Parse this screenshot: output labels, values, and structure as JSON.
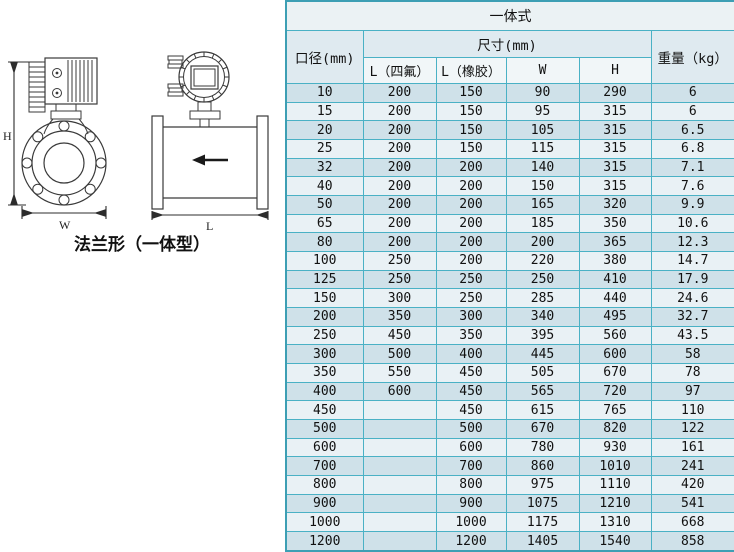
{
  "diagram": {
    "caption": "法兰形（一体型）",
    "dim_labels": {
      "height": "H",
      "width": "W",
      "length": "L"
    }
  },
  "table": {
    "title": "一体式",
    "col_diameter": "口径(mm)",
    "col_size_group": "尺寸(mm)",
    "col_weight": "重量（kg）",
    "subcols": [
      "L（四氟）",
      "L（橡胶）",
      "W",
      "H"
    ],
    "rows": [
      [
        "10",
        "200",
        "150",
        "90",
        "290",
        "6"
      ],
      [
        "15",
        "200",
        "150",
        "95",
        "315",
        "6"
      ],
      [
        "20",
        "200",
        "150",
        "105",
        "315",
        "6.5"
      ],
      [
        "25",
        "200",
        "150",
        "115",
        "315",
        "6.8"
      ],
      [
        "32",
        "200",
        "200",
        "140",
        "315",
        "7.1"
      ],
      [
        "40",
        "200",
        "200",
        "150",
        "315",
        "7.6"
      ],
      [
        "50",
        "200",
        "200",
        "165",
        "320",
        "9.9"
      ],
      [
        "65",
        "200",
        "200",
        "185",
        "350",
        "10.6"
      ],
      [
        "80",
        "200",
        "200",
        "200",
        "365",
        "12.3"
      ],
      [
        "100",
        "250",
        "200",
        "220",
        "380",
        "14.7"
      ],
      [
        "125",
        "250",
        "250",
        "250",
        "410",
        "17.9"
      ],
      [
        "150",
        "300",
        "250",
        "285",
        "440",
        "24.6"
      ],
      [
        "200",
        "350",
        "300",
        "340",
        "495",
        "32.7"
      ],
      [
        "250",
        "450",
        "350",
        "395",
        "560",
        "43.5"
      ],
      [
        "300",
        "500",
        "400",
        "445",
        "600",
        "58"
      ],
      [
        "350",
        "550",
        "450",
        "505",
        "670",
        "78"
      ],
      [
        "400",
        "600",
        "450",
        "565",
        "720",
        "97"
      ],
      [
        "450",
        "",
        "450",
        "615",
        "765",
        "110"
      ],
      [
        "500",
        "",
        "500",
        "670",
        "820",
        "122"
      ],
      [
        "600",
        "",
        "600",
        "780",
        "930",
        "161"
      ],
      [
        "700",
        "",
        "700",
        "860",
        "1010",
        "241"
      ],
      [
        "800",
        "",
        "800",
        "975",
        "1110",
        "420"
      ],
      [
        "900",
        "",
        "900",
        "1075",
        "1210",
        "541"
      ],
      [
        "1000",
        "",
        "1000",
        "1175",
        "1310",
        "668"
      ],
      [
        "1200",
        "",
        "1200",
        "1405",
        "1540",
        "858"
      ]
    ],
    "colors": {
      "border": "#4ab1c5",
      "border_outer": "#3d9fb4",
      "title_bg": "#ebf2f4",
      "head_bg": "#dfeaf0",
      "subhead_bg": "#f1f6f8",
      "row_dark": "#cfe1e9",
      "row_light": "#e9f1f5"
    }
  }
}
